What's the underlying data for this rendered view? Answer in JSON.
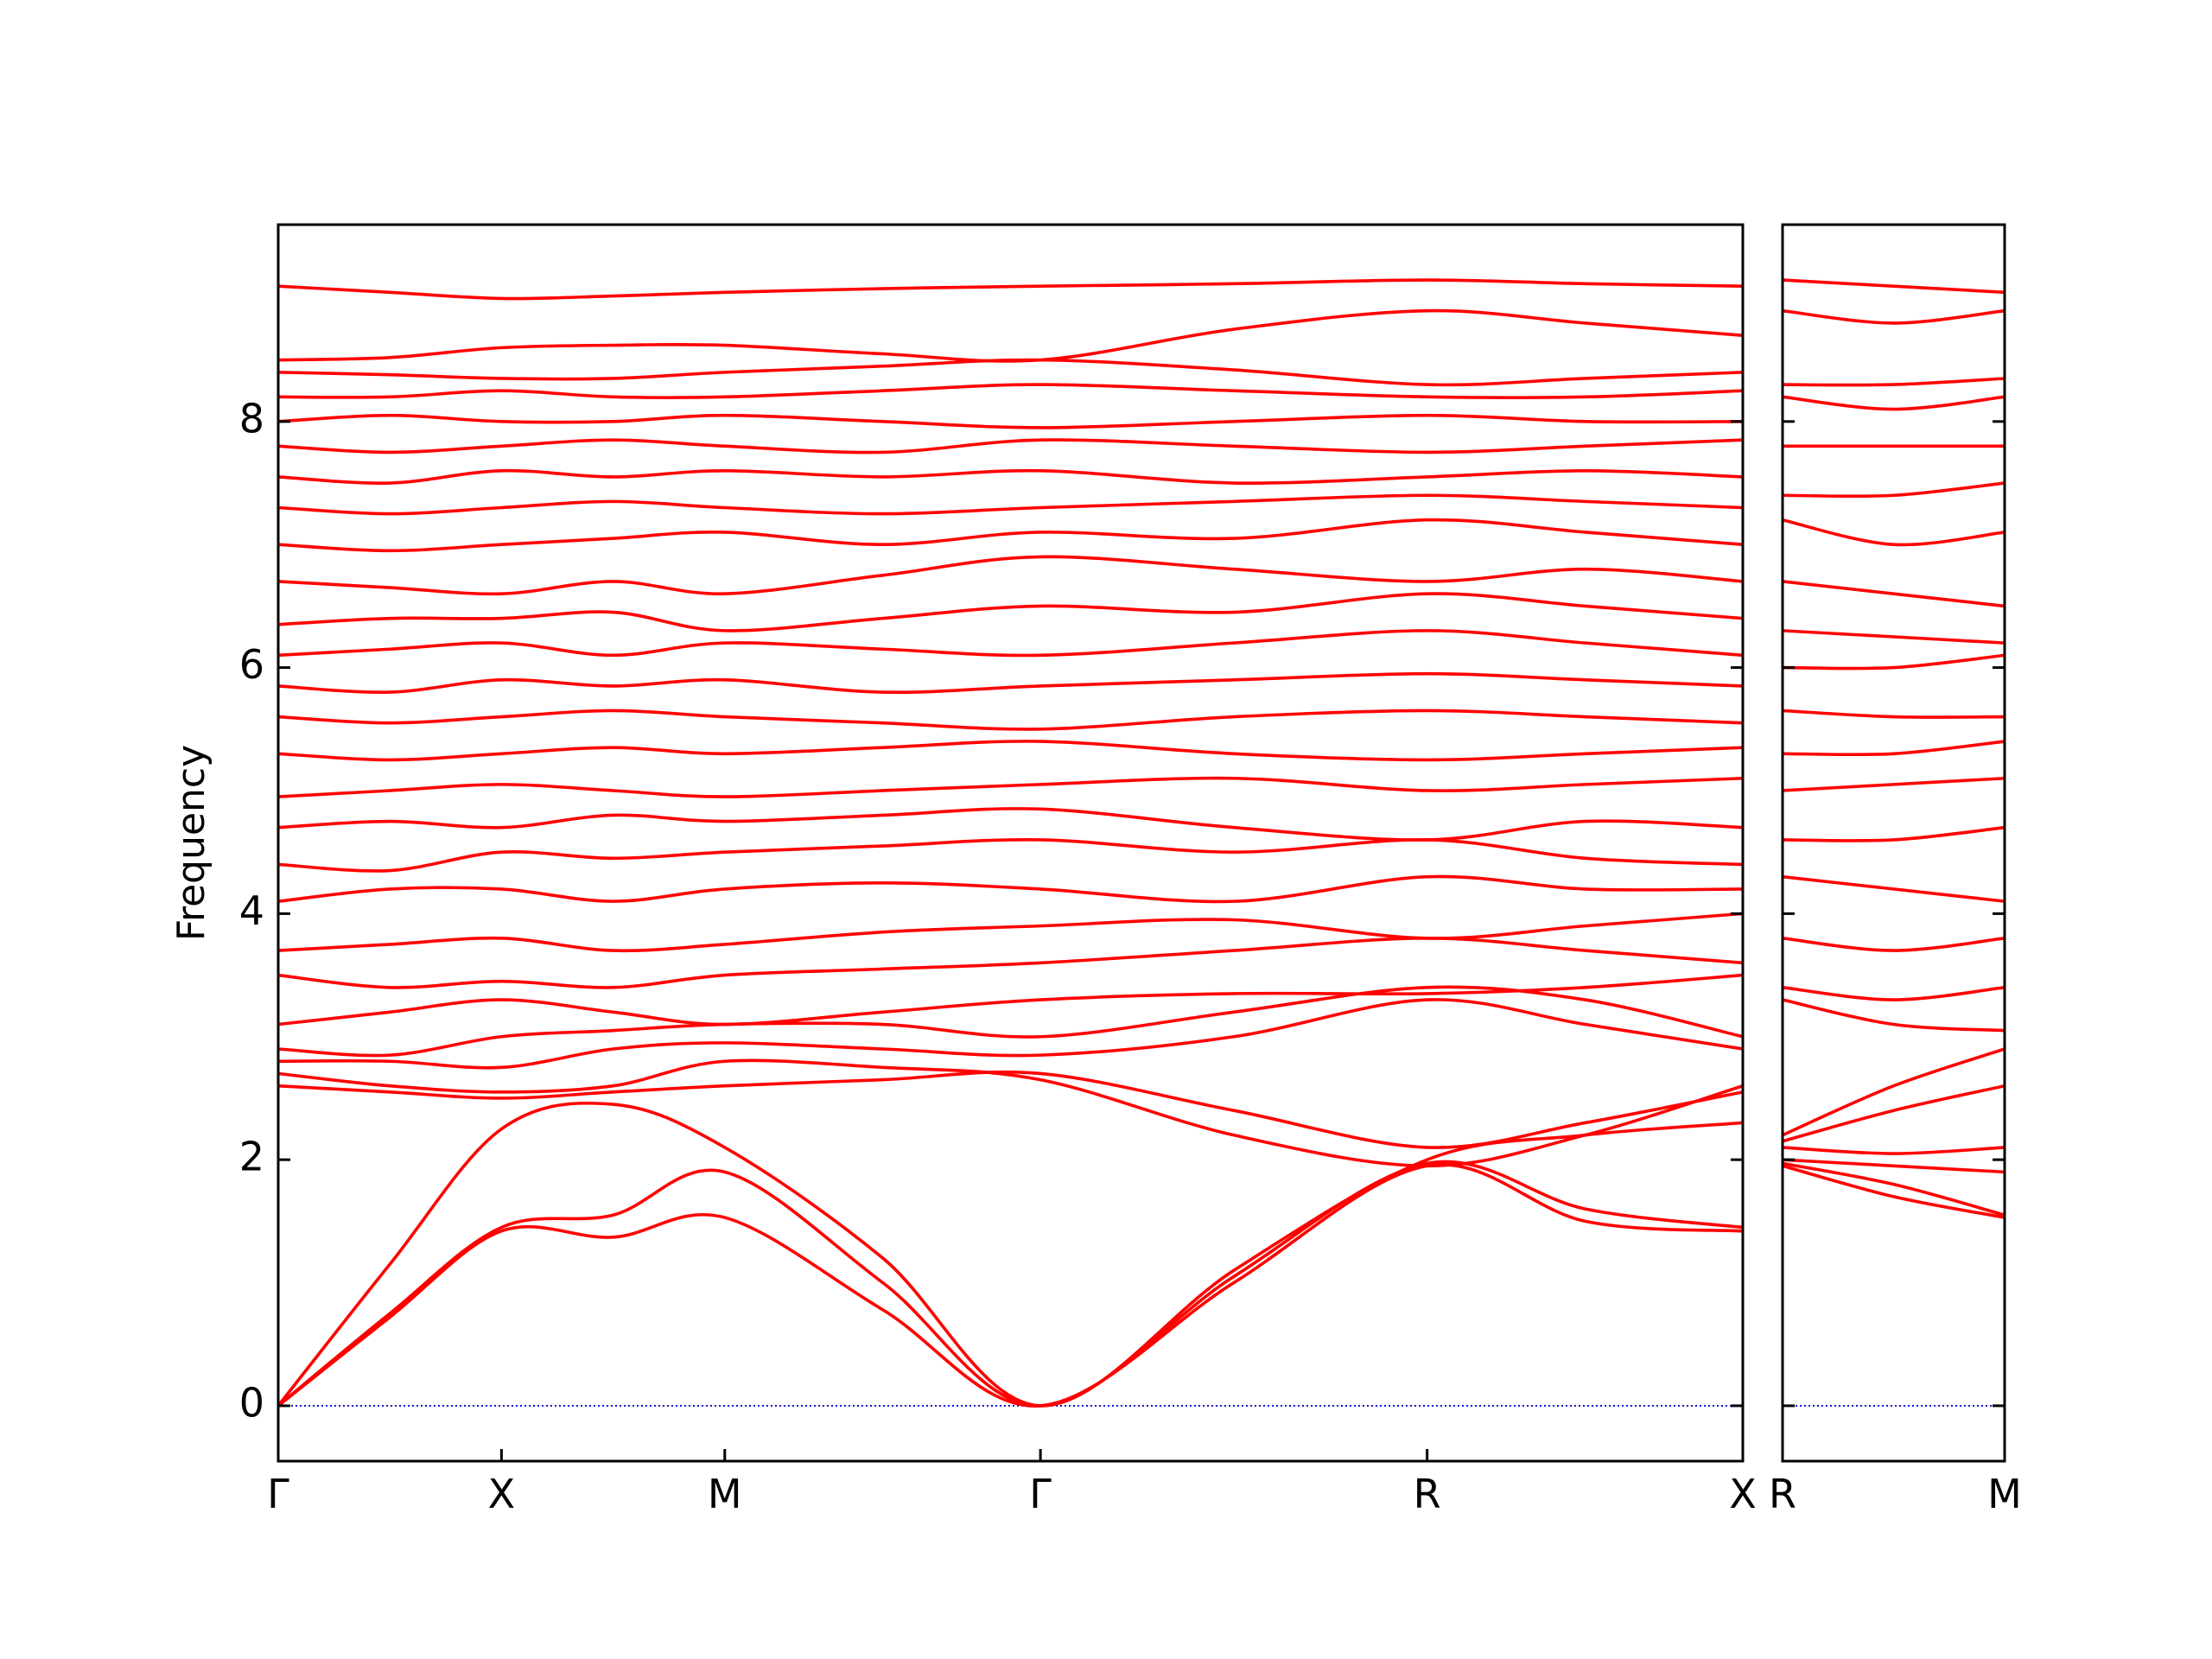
{
  "chart_data": [
    {
      "type": "line",
      "ylabel": "Frequency",
      "color": "#ff0000",
      "hline": 0,
      "hline_color": "#0000cc",
      "ytick_labels": true,
      "x": [
        0,
        0.25,
        0.5,
        0.75,
        1.0,
        1.354,
        1.707,
        2.14,
        2.573,
        2.927,
        3.28
      ],
      "xlim": [
        0,
        3.28
      ],
      "ylim": [
        -0.45,
        9.6
      ],
      "xticks": [
        {
          "value": 0,
          "label": "Γ"
        },
        {
          "value": 0.5,
          "label": "X"
        },
        {
          "value": 1.0,
          "label": "M"
        },
        {
          "value": 1.707,
          "label": "Γ"
        },
        {
          "value": 2.573,
          "label": "R"
        },
        {
          "value": 3.28,
          "label": "X"
        }
      ],
      "yticks": [
        0,
        2,
        4,
        6,
        8
      ],
      "series": [
        {
          "values": [
            0,
            0.72,
            1.42,
            1.37,
            1.53,
            0.78,
            0,
            1.0,
            1.95,
            1.5,
            1.42
          ]
        },
        {
          "values": [
            0,
            0.75,
            1.45,
            1.55,
            1.9,
            1.0,
            0,
            1.05,
            1.97,
            1.6,
            1.45
          ]
        },
        {
          "values": [
            0,
            1.15,
            2.25,
            2.45,
            2.1,
            1.2,
            0,
            1.1,
            2.0,
            2.2,
            2.3
          ]
        },
        {
          "values": [
            2.6,
            2.55,
            2.5,
            2.55,
            2.6,
            2.65,
            2.7,
            2.4,
            2.1,
            2.3,
            2.55
          ]
        },
        {
          "values": [
            2.7,
            2.6,
            2.55,
            2.6,
            2.8,
            2.75,
            2.65,
            2.2,
            1.95,
            2.2,
            2.6
          ]
        },
        {
          "values": [
            2.8,
            2.8,
            2.75,
            2.9,
            2.95,
            2.9,
            2.85,
            3.0,
            3.3,
            3.1,
            2.9
          ]
        },
        {
          "values": [
            2.9,
            2.85,
            3.0,
            3.05,
            3.1,
            3.1,
            3.0,
            3.2,
            3.4,
            3.3,
            3.0
          ]
        },
        {
          "values": [
            3.1,
            3.2,
            3.3,
            3.2,
            3.1,
            3.2,
            3.3,
            3.35,
            3.35,
            3.4,
            3.5
          ]
        },
        {
          "values": [
            3.5,
            3.4,
            3.45,
            3.4,
            3.5,
            3.55,
            3.6,
            3.7,
            3.8,
            3.7,
            3.6
          ]
        },
        {
          "values": [
            3.7,
            3.75,
            3.8,
            3.7,
            3.75,
            3.85,
            3.9,
            3.95,
            3.8,
            3.9,
            4.0
          ]
        },
        {
          "values": [
            4.1,
            4.2,
            4.2,
            4.1,
            4.2,
            4.25,
            4.2,
            4.1,
            4.3,
            4.2,
            4.2
          ]
        },
        {
          "values": [
            4.4,
            4.35,
            4.5,
            4.45,
            4.5,
            4.55,
            4.6,
            4.5,
            4.6,
            4.45,
            4.4
          ]
        },
        {
          "values": [
            4.7,
            4.75,
            4.7,
            4.8,
            4.75,
            4.8,
            4.85,
            4.7,
            4.6,
            4.75,
            4.7
          ]
        },
        {
          "values": [
            4.95,
            5.0,
            5.05,
            5.0,
            4.95,
            5.0,
            5.05,
            5.1,
            5.0,
            5.05,
            5.1
          ]
        },
        {
          "values": [
            5.3,
            5.25,
            5.3,
            5.35,
            5.3,
            5.35,
            5.4,
            5.3,
            5.25,
            5.3,
            5.35
          ]
        },
        {
          "values": [
            5.6,
            5.55,
            5.6,
            5.65,
            5.6,
            5.55,
            5.5,
            5.6,
            5.65,
            5.6,
            5.55
          ]
        },
        {
          "values": [
            5.85,
            5.8,
            5.9,
            5.85,
            5.9,
            5.8,
            5.85,
            5.9,
            5.95,
            5.9,
            5.85
          ]
        },
        {
          "values": [
            6.1,
            6.15,
            6.2,
            6.1,
            6.2,
            6.15,
            6.1,
            6.2,
            6.3,
            6.2,
            6.1
          ]
        },
        {
          "values": [
            6.35,
            6.4,
            6.4,
            6.45,
            6.3,
            6.4,
            6.5,
            6.45,
            6.6,
            6.5,
            6.4
          ]
        },
        {
          "values": [
            6.7,
            6.65,
            6.6,
            6.7,
            6.6,
            6.75,
            6.9,
            6.8,
            6.7,
            6.8,
            6.7
          ]
        },
        {
          "values": [
            7.0,
            6.95,
            7.0,
            7.05,
            7.1,
            7.0,
            7.1,
            7.05,
            7.2,
            7.1,
            7.0
          ]
        },
        {
          "values": [
            7.3,
            7.25,
            7.3,
            7.35,
            7.3,
            7.25,
            7.3,
            7.35,
            7.4,
            7.35,
            7.3
          ]
        },
        {
          "values": [
            7.55,
            7.5,
            7.6,
            7.55,
            7.6,
            7.55,
            7.6,
            7.5,
            7.55,
            7.6,
            7.55
          ]
        },
        {
          "values": [
            7.8,
            7.75,
            7.8,
            7.85,
            7.8,
            7.75,
            7.85,
            7.8,
            7.75,
            7.8,
            7.85
          ]
        },
        {
          "values": [
            8.0,
            8.05,
            8.0,
            8.0,
            8.05,
            8.0,
            7.95,
            8.0,
            8.05,
            8.0,
            8.0
          ]
        },
        {
          "values": [
            8.2,
            8.2,
            8.25,
            8.2,
            8.2,
            8.25,
            8.3,
            8.25,
            8.2,
            8.2,
            8.25
          ]
        },
        {
          "values": [
            8.4,
            8.38,
            8.35,
            8.35,
            8.4,
            8.45,
            8.5,
            8.42,
            8.3,
            8.35,
            8.4
          ]
        },
        {
          "values": [
            8.5,
            8.52,
            8.6,
            8.62,
            8.62,
            8.55,
            8.5,
            8.75,
            8.9,
            8.8,
            8.7
          ]
        },
        {
          "values": [
            9.1,
            9.05,
            9.0,
            9.02,
            9.05,
            9.08,
            9.1,
            9.12,
            9.15,
            9.12,
            9.1
          ]
        }
      ]
    },
    {
      "type": "line",
      "color": "#ff0000",
      "hline": 0,
      "hline_color": "#0000cc",
      "ytick_labels": false,
      "x": [
        0,
        0.25,
        0.5
      ],
      "xlim": [
        0,
        0.5
      ],
      "ylim": [
        -0.45,
        9.6
      ],
      "xticks": [
        {
          "value": 0,
          "label": "R"
        },
        {
          "value": 0.5,
          "label": "M"
        }
      ],
      "yticks": [
        0,
        2,
        4,
        6,
        8
      ],
      "series": [
        {
          "values": [
            1.95,
            1.7,
            1.53
          ]
        },
        {
          "values": [
            1.97,
            1.8,
            1.55
          ]
        },
        {
          "values": [
            2.0,
            1.95,
            1.9
          ]
        },
        {
          "values": [
            2.1,
            2.05,
            2.1
          ]
        },
        {
          "values": [
            2.15,
            2.4,
            2.6
          ]
        },
        {
          "values": [
            2.2,
            2.6,
            2.9
          ]
        },
        {
          "values": [
            3.3,
            3.1,
            3.05
          ]
        },
        {
          "values": [
            3.4,
            3.3,
            3.4
          ]
        },
        {
          "values": [
            3.8,
            3.7,
            3.8
          ]
        },
        {
          "values": [
            4.3,
            4.2,
            4.1
          ]
        },
        {
          "values": [
            4.6,
            4.6,
            4.7
          ]
        },
        {
          "values": [
            5.0,
            5.05,
            5.1
          ]
        },
        {
          "values": [
            5.3,
            5.3,
            5.4
          ]
        },
        {
          "values": [
            5.65,
            5.6,
            5.6
          ]
        },
        {
          "values": [
            6.0,
            6.0,
            6.1
          ]
        },
        {
          "values": [
            6.3,
            6.25,
            6.2
          ]
        },
        {
          "values": [
            6.7,
            6.6,
            6.5
          ]
        },
        {
          "values": [
            7.2,
            7.0,
            7.1
          ]
        },
        {
          "values": [
            7.4,
            7.4,
            7.5
          ]
        },
        {
          "values": [
            7.8,
            7.8,
            7.8
          ]
        },
        {
          "values": [
            8.2,
            8.1,
            8.2
          ]
        },
        {
          "values": [
            8.3,
            8.3,
            8.35
          ]
        },
        {
          "values": [
            8.9,
            8.8,
            8.9
          ]
        },
        {
          "values": [
            9.15,
            9.1,
            9.05
          ]
        }
      ]
    }
  ]
}
